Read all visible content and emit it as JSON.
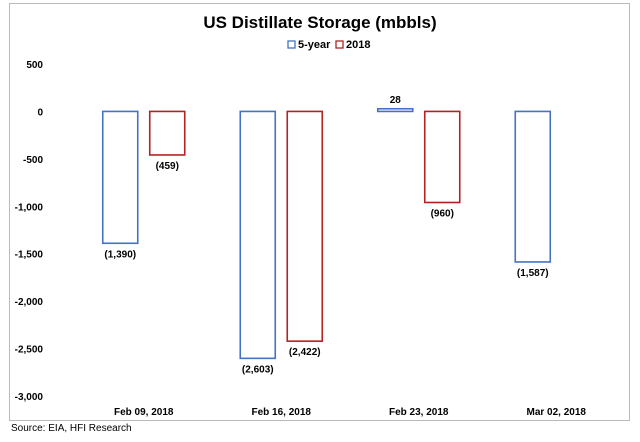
{
  "chart_data": {
    "type": "bar",
    "title": "US Distillate Storage (mbbls)",
    "categories": [
      "Feb 09, 2018",
      "Feb 16, 2018",
      "Feb 23, 2018",
      "Mar 02, 2018"
    ],
    "series": [
      {
        "name": "5-year",
        "color": "#4472c4",
        "values": [
          -1390,
          -2603,
          28,
          -1587
        ],
        "labels": [
          "(1,390)",
          "(2,603)",
          "28",
          "(1,587)"
        ]
      },
      {
        "name": "2018",
        "color": "#b22222",
        "values": [
          -459,
          -2422,
          -960,
          null
        ],
        "labels": [
          "(459)",
          "(2,422)",
          "(960)",
          ""
        ]
      }
    ],
    "ylim": [
      -3000,
      500
    ],
    "yticks": [
      500,
      0,
      -500,
      -1000,
      -1500,
      -2000,
      -2500,
      -3000
    ],
    "ytick_labels": [
      "500",
      "0",
      "-500",
      "-1,000",
      "-1,500",
      "-2,000",
      "-2,500",
      "-3,000"
    ],
    "legend_position": "top-center",
    "grid": false,
    "bar_fill": "none"
  },
  "source": "Source: EIA, HFI Research"
}
